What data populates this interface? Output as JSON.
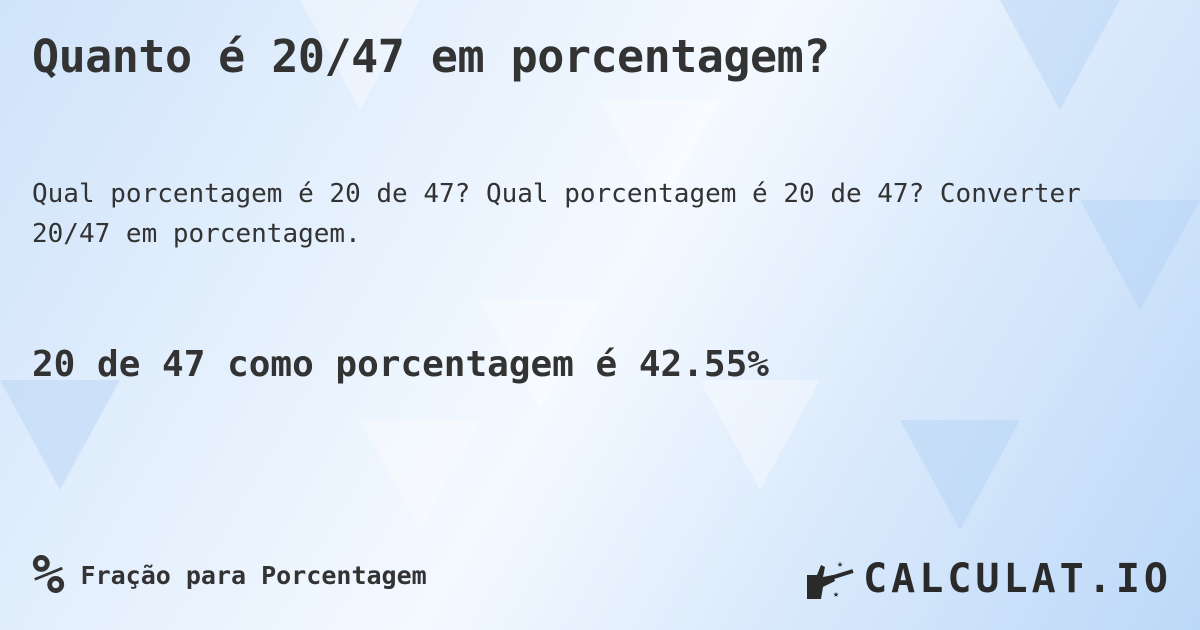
{
  "title": "Quanto é 20/47 em porcentagem?",
  "description": "Qual porcentagem é 20 de 47? Qual porcentagem é 20 de 47? Converter 20/47 em porcentagem.",
  "answer": "20 de 47 como porcentagem é 42.55%",
  "footer": {
    "icon": "percent-icon",
    "icon_glyph": "%",
    "category": "Fração para Porcentagem"
  },
  "logo": {
    "text": "CALCULAT.IO",
    "icon": "magic-hand-icon"
  }
}
